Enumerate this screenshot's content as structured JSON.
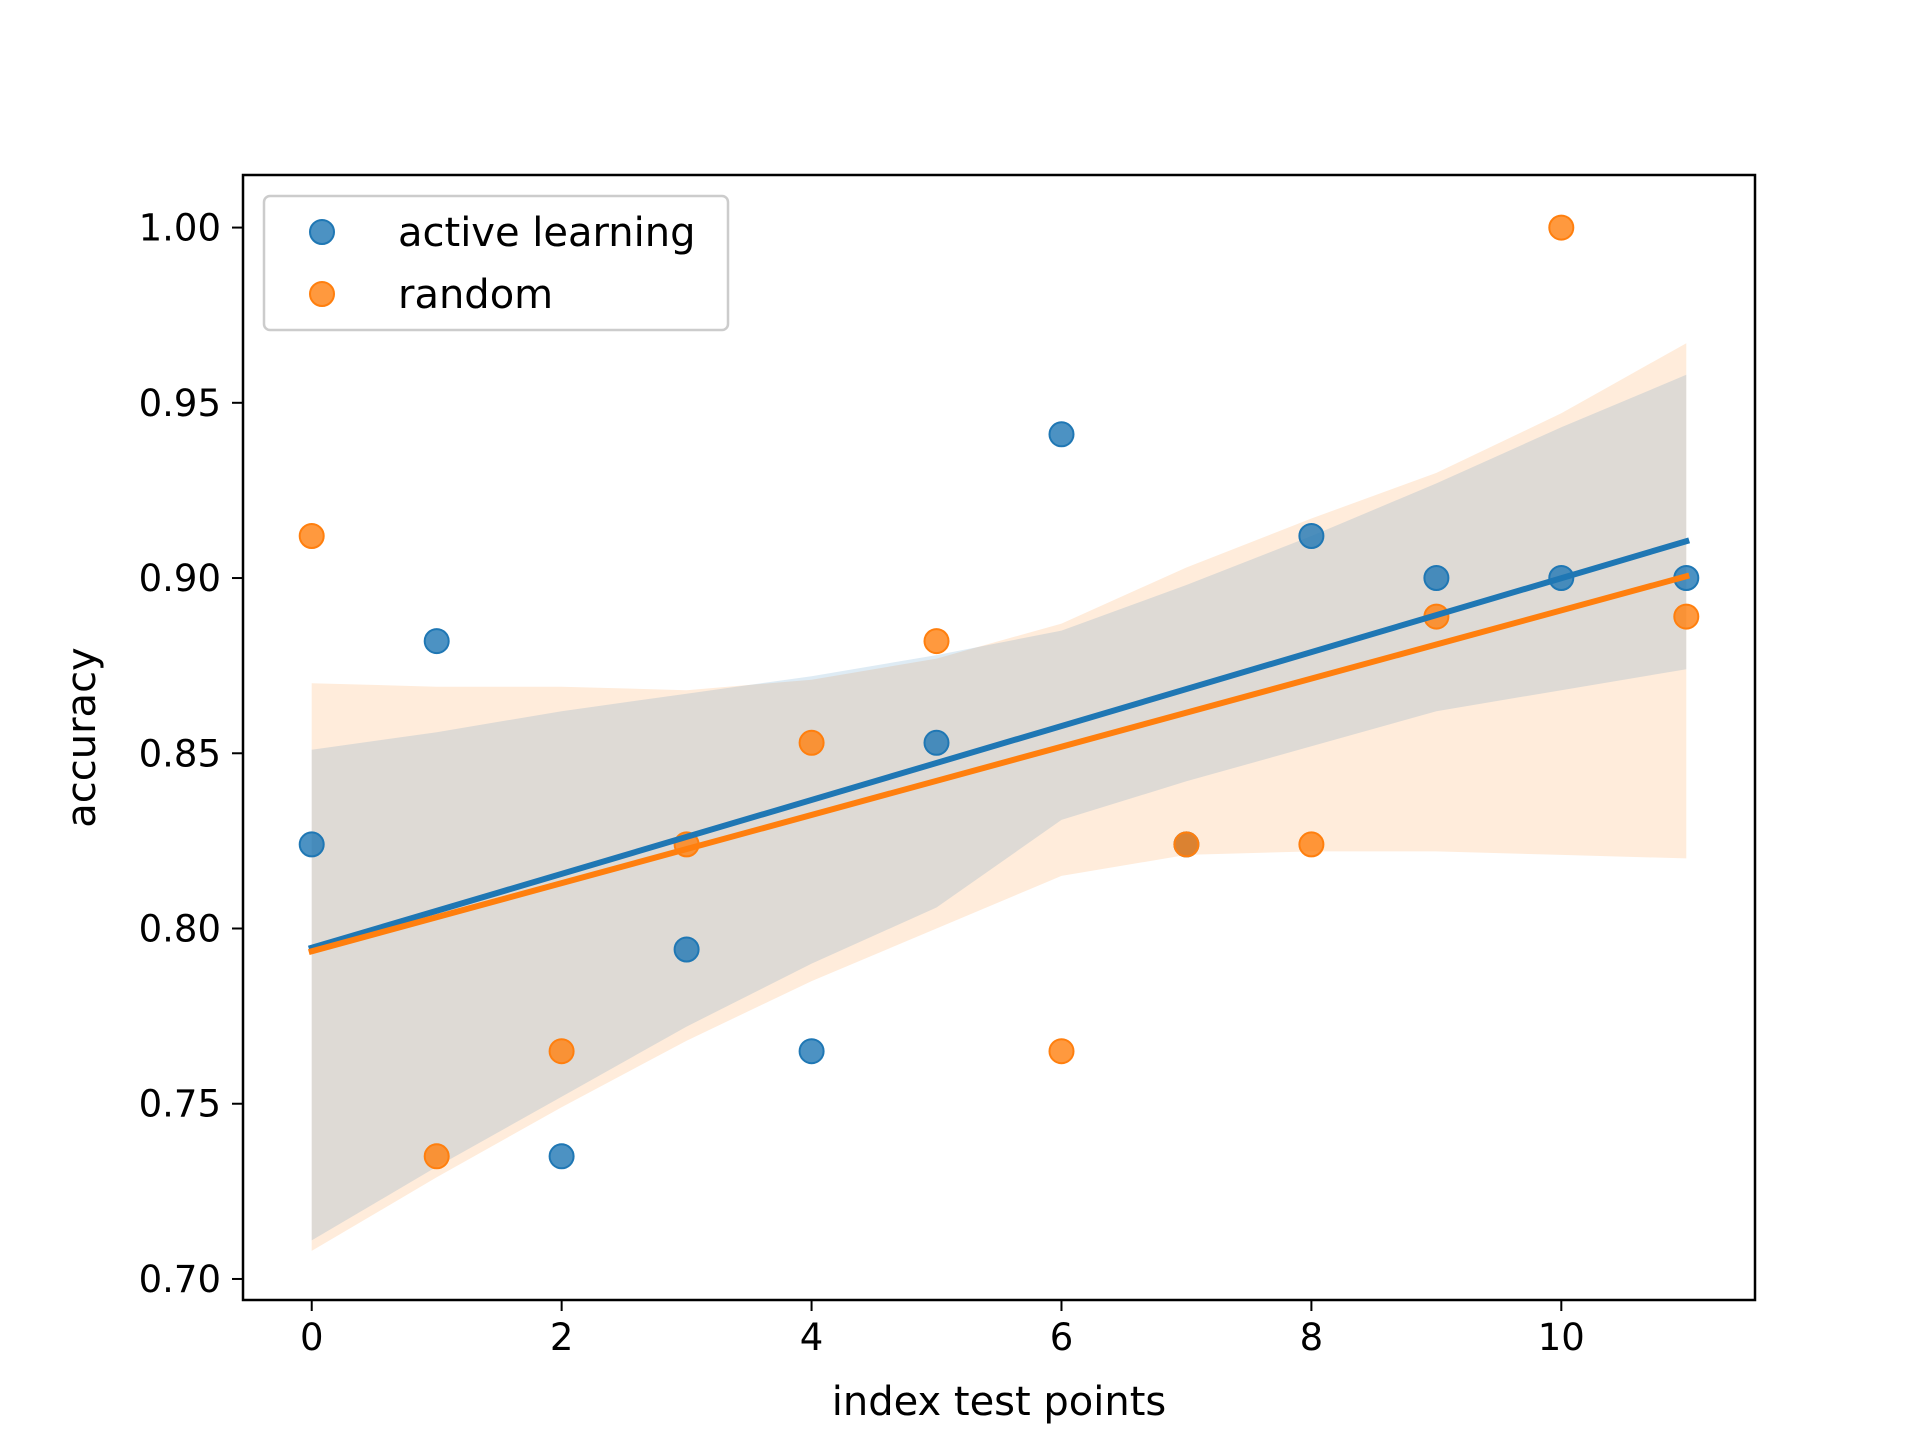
{
  "chart_data": {
    "type": "scatter",
    "title": "",
    "xlabel": "index test points",
    "ylabel": "accuracy",
    "xlim": [
      -0.55,
      11.55
    ],
    "ylim": [
      0.694,
      1.015
    ],
    "xticks": [
      0,
      2,
      4,
      6,
      8,
      10
    ],
    "xtick_labels": [
      "0",
      "2",
      "4",
      "6",
      "8",
      "10"
    ],
    "yticks": [
      0.7,
      0.75,
      0.8,
      0.85,
      0.9,
      0.95,
      1.0
    ],
    "ytick_labels": [
      "0.70",
      "0.75",
      "0.80",
      "0.85",
      "0.90",
      "0.95",
      "1.00"
    ],
    "grid": false,
    "legend_position": "top-left",
    "series": [
      {
        "name": "active learning",
        "color": "#1f77b4",
        "x": [
          0,
          1,
          2,
          3,
          4,
          5,
          6,
          7,
          8,
          9,
          10,
          11
        ],
        "y": [
          0.824,
          0.882,
          0.735,
          0.794,
          0.765,
          0.853,
          0.941,
          0.824,
          0.912,
          0.9,
          0.9,
          0.9
        ],
        "fit_line": {
          "x": [
            0,
            11
          ],
          "y": [
            0.7945,
            0.9105
          ]
        },
        "ci_band": {
          "x": [
            0,
            1,
            2,
            3,
            4,
            5,
            6,
            7,
            8,
            9,
            10,
            11
          ],
          "lower": [
            0.711,
            0.732,
            0.752,
            0.772,
            0.79,
            0.806,
            0.831,
            0.842,
            0.852,
            0.862,
            0.868,
            0.874
          ],
          "upper": [
            0.851,
            0.856,
            0.862,
            0.867,
            0.872,
            0.878,
            0.885,
            0.898,
            0.912,
            0.927,
            0.943,
            0.958
          ]
        }
      },
      {
        "name": "random",
        "color": "#ff7f0e",
        "x": [
          0,
          1,
          2,
          3,
          4,
          5,
          6,
          7,
          8,
          9,
          10,
          11
        ],
        "y": [
          0.912,
          0.735,
          0.765,
          0.824,
          0.853,
          0.882,
          0.765,
          0.824,
          0.824,
          0.889,
          1.0,
          0.889
        ],
        "fit_line": {
          "x": [
            0,
            11
          ],
          "y": [
            0.7935,
            0.9005
          ]
        },
        "ci_band": {
          "x": [
            0,
            1,
            2,
            3,
            4,
            5,
            6,
            7,
            8,
            9,
            10,
            11
          ],
          "lower": [
            0.708,
            0.729,
            0.749,
            0.768,
            0.785,
            0.8,
            0.815,
            0.821,
            0.822,
            0.822,
            0.821,
            0.82
          ],
          "upper": [
            0.87,
            0.869,
            0.869,
            0.868,
            0.871,
            0.877,
            0.887,
            0.903,
            0.917,
            0.93,
            0.947,
            0.967
          ]
        }
      }
    ]
  }
}
